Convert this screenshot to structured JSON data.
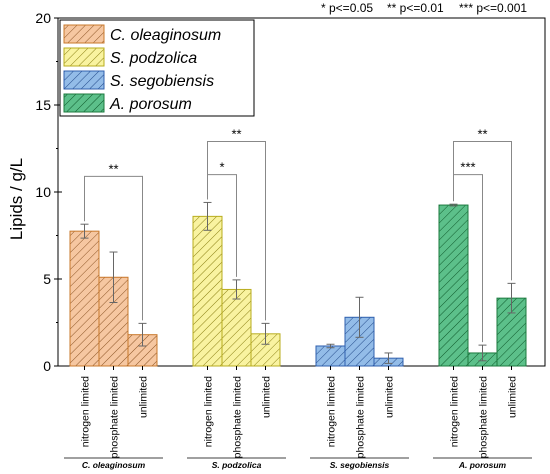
{
  "significance_legend": {
    "p05": "* p<=0.05",
    "p01": "** p<=0.01",
    "p001": "*** p<=0.001"
  },
  "chart_data": {
    "type": "bar",
    "ylabel": "Lipids / g/L",
    "ylim": [
      0,
      20
    ],
    "yticks": [
      0,
      5,
      10,
      15,
      20
    ],
    "conditions": [
      "nitrogen limited",
      "phosphate limited",
      "unlimited"
    ],
    "groups": [
      "C. oleaginosum",
      "S. podzolica",
      "S. segobiensis",
      "A. porosum"
    ],
    "series": [
      {
        "name": "C. oleaginosum",
        "values": [
          7.75,
          5.1,
          1.8
        ],
        "errors": [
          0.4,
          1.45,
          0.65
        ],
        "fill": "#f6c7a1",
        "stroke": "#c8782b",
        "hatch": "#8b5324"
      },
      {
        "name": "S. podzolica",
        "values": [
          8.6,
          4.4,
          1.85
        ],
        "errors": [
          0.8,
          0.55,
          0.6
        ],
        "fill": "#f9f3a0",
        "stroke": "#b8ac1e",
        "hatch": "#8a7f12"
      },
      {
        "name": "S. segobiensis",
        "values": [
          1.15,
          2.8,
          0.45
        ],
        "errors": [
          0.1,
          1.15,
          0.3
        ],
        "fill": "#93bce8",
        "stroke": "#2f5fae",
        "hatch": "#234a8a"
      },
      {
        "name": "A. porosum",
        "values": [
          9.25,
          0.75,
          3.9
        ],
        "errors": [
          0.05,
          0.45,
          0.85
        ],
        "fill": "#5cc08a",
        "stroke": "#1b7a3e",
        "hatch": "#0f5a2c"
      }
    ],
    "annotations": [
      {
        "group": 0,
        "from": 0,
        "to": 2,
        "label": "**"
      },
      {
        "group": 1,
        "from": 0,
        "to": 1,
        "label": "*"
      },
      {
        "group": 1,
        "from": 0,
        "to": 2,
        "label": "**"
      },
      {
        "group": 3,
        "from": 0,
        "to": 1,
        "label": "***"
      },
      {
        "group": 3,
        "from": 0,
        "to": 2,
        "label": "**"
      }
    ],
    "legend_position": "top-left"
  }
}
